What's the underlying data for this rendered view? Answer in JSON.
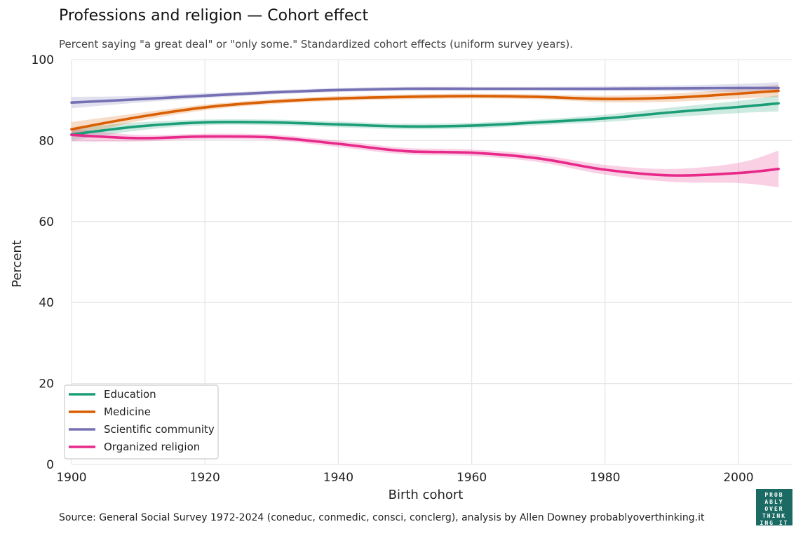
{
  "title": "Professions and religion — Cohort effect",
  "subtitle": "Percent saying \"a great deal\" or \"only some.\" Standardized cohort effects (uniform survey years).",
  "source": "Source: General Social Survey 1972-2024 (coneduc, conmedic, consci, conclerg), analysis by Allen Downey probablyoverthinking.it",
  "logo_lines": [
    "PROB",
    "ABLY",
    "OVER",
    "THINK",
    "ING IT"
  ],
  "chart_data": {
    "type": "line",
    "xlabel": "Birth cohort",
    "ylabel": "Percent",
    "xlim": [
      1900,
      2006
    ],
    "ylim": [
      0,
      100
    ],
    "xticks": [
      1900,
      1920,
      1940,
      1960,
      1980,
      2000
    ],
    "yticks": [
      0,
      20,
      40,
      60,
      80,
      100
    ],
    "grid": true,
    "legend_position": "lower-left",
    "x": [
      1900,
      1910,
      1920,
      1930,
      1940,
      1950,
      1960,
      1970,
      1980,
      1990,
      2000,
      2006
    ],
    "series": [
      {
        "name": "Education",
        "color": "#1b9e77",
        "values": [
          81.5,
          83.5,
          84.5,
          84.5,
          84.0,
          83.5,
          83.7,
          84.5,
          85.5,
          87.0,
          88.3,
          89.2
        ],
        "lower": [
          80.0,
          82.5,
          83.8,
          83.8,
          83.3,
          82.8,
          83.0,
          83.8,
          84.6,
          85.8,
          86.8,
          87.2
        ],
        "upper": [
          83.0,
          84.5,
          85.2,
          85.2,
          84.7,
          84.2,
          84.4,
          85.2,
          86.4,
          88.2,
          89.8,
          91.2
        ]
      },
      {
        "name": "Medicine",
        "color": "#d95f02",
        "values": [
          82.8,
          85.8,
          88.2,
          89.6,
          90.4,
          90.8,
          91.0,
          90.8,
          90.3,
          90.6,
          91.6,
          92.3
        ],
        "lower": [
          81.0,
          84.8,
          87.5,
          89.0,
          89.8,
          90.2,
          90.4,
          90.2,
          89.5,
          89.6,
          90.4,
          90.8
        ],
        "upper": [
          84.6,
          86.8,
          88.9,
          90.2,
          91.0,
          91.4,
          91.6,
          91.4,
          91.1,
          91.6,
          92.8,
          93.8
        ]
      },
      {
        "name": "Scientific community",
        "color": "#7570b3",
        "values": [
          89.4,
          90.2,
          91.1,
          91.9,
          92.5,
          92.8,
          92.8,
          92.8,
          92.8,
          92.9,
          93.0,
          93.0
        ],
        "lower": [
          88.0,
          89.4,
          90.5,
          91.4,
          92.0,
          92.3,
          92.3,
          92.3,
          92.2,
          92.2,
          92.0,
          91.8
        ],
        "upper": [
          90.8,
          91.0,
          91.7,
          92.4,
          93.0,
          93.3,
          93.3,
          93.3,
          93.4,
          93.6,
          94.0,
          94.4
        ]
      },
      {
        "name": "Organized religion",
        "color": "#e7298a",
        "values": [
          81.4,
          80.6,
          81.0,
          80.8,
          79.2,
          77.4,
          77.0,
          75.6,
          72.8,
          71.4,
          72.0,
          73.0
        ],
        "lower": [
          79.8,
          79.8,
          80.3,
          80.1,
          78.4,
          76.6,
          76.2,
          74.7,
          71.6,
          69.8,
          69.5,
          68.5
        ],
        "upper": [
          83.0,
          81.4,
          81.7,
          81.5,
          80.0,
          78.2,
          77.8,
          76.5,
          74.0,
          73.0,
          74.5,
          77.5
        ]
      }
    ]
  }
}
